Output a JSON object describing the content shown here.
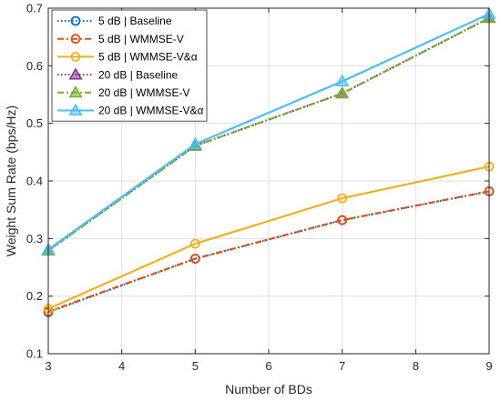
{
  "chart_data": {
    "type": "line",
    "x": [
      3,
      5,
      7,
      9
    ],
    "xlabel": "Number of BDs",
    "ylabel": "Weight Sum Rate (bps/Hz)",
    "xlim": [
      3,
      9
    ],
    "ylim": [
      0.1,
      0.7
    ],
    "xticks": [
      3,
      4,
      5,
      6,
      7,
      8,
      9
    ],
    "yticks": [
      0.1,
      0.2,
      0.3,
      0.4,
      0.5,
      0.6,
      0.7
    ],
    "xtick_labels": [
      "3",
      "4",
      "5",
      "6",
      "7",
      "8",
      "9"
    ],
    "ytick_labels": [
      "0.1",
      "0.2",
      "0.3",
      "0.4",
      "0.5",
      "0.6",
      "0.7"
    ],
    "grid": true,
    "legend_position": "top-left",
    "series": [
      {
        "name": "5 dB | Baseline",
        "values": [
          0.172,
          0.265,
          0.332,
          0.382
        ],
        "color": "#0072BD",
        "dash": "dotted",
        "marker": "circle"
      },
      {
        "name": "5 dB | WMMSE-V",
        "values": [
          0.173,
          0.265,
          0.332,
          0.382
        ],
        "color": "#D95319",
        "dash": "dashdot",
        "marker": "circle"
      },
      {
        "name": "5 dB | WMMSE-V&α",
        "values": [
          0.178,
          0.291,
          0.37,
          0.425
        ],
        "color": "#EDB120",
        "dash": "solid",
        "marker": "circle"
      },
      {
        "name": "20 dB | Baseline",
        "values": [
          0.279,
          0.461,
          0.552,
          0.683
        ],
        "color": "#7E2F8E",
        "dash": "dotted",
        "marker": "triangle"
      },
      {
        "name": "20 dB | WMMSE-V",
        "values": [
          0.279,
          0.461,
          0.552,
          0.683
        ],
        "color": "#77AC30",
        "dash": "dashdot",
        "marker": "triangle"
      },
      {
        "name": "20 dB | WMMSE-V&α",
        "values": [
          0.281,
          0.464,
          0.573,
          0.69
        ],
        "color": "#4DBEEE",
        "dash": "solid",
        "marker": "triangle"
      }
    ]
  }
}
